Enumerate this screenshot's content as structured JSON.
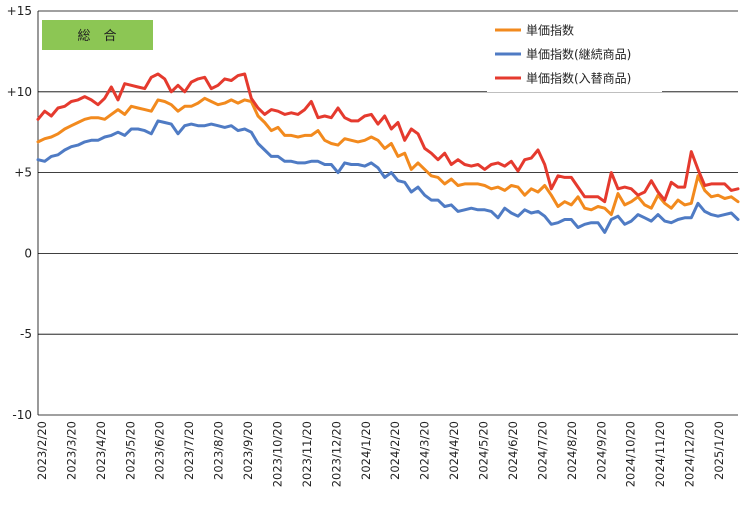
{
  "chart_data": {
    "type": "line",
    "badge": {
      "label": "総　合",
      "color": "#8CC654"
    },
    "y_ticks": [
      "+15",
      "+10",
      "+5",
      "0",
      "-5",
      "-10"
    ],
    "y_tick_values": [
      15,
      10,
      5,
      0,
      -5,
      -10
    ],
    "ylim": [
      -10,
      15
    ],
    "grid": "horizontal",
    "legend_position": "top-right",
    "x_tick_labels": [
      "2023/2/20",
      "2023/3/20",
      "2023/4/20",
      "2023/5/20",
      "2023/6/20",
      "2023/7/20",
      "2023/8/20",
      "2023/9/20",
      "2023/10/20",
      "2023/11/20",
      "2023/12/20",
      "2024/1/20",
      "2024/2/20",
      "2024/3/20",
      "2024/4/20",
      "2024/5/20",
      "2024/6/20",
      "2024/7/20",
      "2024/8/20",
      "2024/9/20",
      "2024/10/20",
      "2024/11/20",
      "2024/12/20",
      "2025/1/20"
    ],
    "series": [
      {
        "name": "単価指数",
        "color": "#F28A1E",
        "values": [
          6.9,
          7.1,
          7.2,
          7.4,
          7.7,
          7.9,
          8.1,
          8.3,
          8.4,
          8.4,
          8.3,
          8.6,
          8.9,
          8.6,
          9.1,
          9.0,
          8.9,
          8.8,
          9.5,
          9.4,
          9.2,
          8.8,
          9.1,
          9.1,
          9.3,
          9.6,
          9.4,
          9.2,
          9.3,
          9.5,
          9.3,
          9.5,
          9.4,
          8.5,
          8.1,
          7.6,
          7.8,
          7.3,
          7.3,
          7.2,
          7.3,
          7.3,
          7.6,
          7.0,
          6.8,
          6.7,
          7.1,
          7.0,
          6.9,
          7.0,
          7.2,
          7.0,
          6.5,
          6.8,
          6.0,
          6.2,
          5.2,
          5.6,
          5.2,
          4.8,
          4.7,
          4.3,
          4.6,
          4.2,
          4.3,
          4.3,
          4.3,
          4.2,
          4.0,
          4.1,
          3.9,
          4.2,
          4.1,
          3.6,
          4.0,
          3.8,
          4.2,
          3.6,
          2.9,
          3.2,
          3.0,
          3.5,
          2.8,
          2.7,
          2.9,
          2.8,
          2.4,
          3.7,
          3.0,
          3.2,
          3.5,
          3.0,
          2.8,
          3.6,
          3.1,
          2.8,
          3.3,
          3.0,
          3.1,
          4.8,
          3.9,
          3.5,
          3.6,
          3.4,
          3.5,
          3.2
        ]
      },
      {
        "name": "単価指数(継続商品)",
        "color": "#4F7BC4",
        "values": [
          5.8,
          5.7,
          6.0,
          6.1,
          6.4,
          6.6,
          6.7,
          6.9,
          7.0,
          7.0,
          7.2,
          7.3,
          7.5,
          7.3,
          7.7,
          7.7,
          7.6,
          7.4,
          8.2,
          8.1,
          8.0,
          7.4,
          7.9,
          8.0,
          7.9,
          7.9,
          8.0,
          7.9,
          7.8,
          7.9,
          7.6,
          7.7,
          7.5,
          6.8,
          6.4,
          6.0,
          6.0,
          5.7,
          5.7,
          5.6,
          5.6,
          5.7,
          5.7,
          5.5,
          5.5,
          5.0,
          5.6,
          5.5,
          5.5,
          5.4,
          5.6,
          5.3,
          4.7,
          5.0,
          4.5,
          4.4,
          3.8,
          4.1,
          3.6,
          3.3,
          3.3,
          2.9,
          3.0,
          2.6,
          2.7,
          2.8,
          2.7,
          2.7,
          2.6,
          2.2,
          2.8,
          2.5,
          2.3,
          2.7,
          2.5,
          2.6,
          2.3,
          1.8,
          1.9,
          2.1,
          2.1,
          1.6,
          1.8,
          1.9,
          1.9,
          1.3,
          2.1,
          2.3,
          1.8,
          2.0,
          2.4,
          2.2,
          2.0,
          2.4,
          2.0,
          1.9,
          2.1,
          2.2,
          2.2,
          3.1,
          2.6,
          2.4,
          2.3,
          2.4,
          2.5,
          2.1
        ]
      },
      {
        "name": "単価指数(入替商品)",
        "color": "#E53A2E",
        "values": [
          8.3,
          8.8,
          8.5,
          9.0,
          9.1,
          9.4,
          9.5,
          9.7,
          9.5,
          9.2,
          9.6,
          10.3,
          9.5,
          10.5,
          10.4,
          10.3,
          10.2,
          10.9,
          11.1,
          10.8,
          10.0,
          10.4,
          10.0,
          10.6,
          10.8,
          10.9,
          10.2,
          10.4,
          10.8,
          10.7,
          11.0,
          11.1,
          9.6,
          9.0,
          8.6,
          8.9,
          8.8,
          8.6,
          8.7,
          8.6,
          8.9,
          9.4,
          8.4,
          8.5,
          8.4,
          9.0,
          8.4,
          8.2,
          8.2,
          8.5,
          8.6,
          8.0,
          8.5,
          7.7,
          8.1,
          7.0,
          7.7,
          7.4,
          6.5,
          6.2,
          5.8,
          6.2,
          5.5,
          5.8,
          5.5,
          5.4,
          5.5,
          5.2,
          5.5,
          5.6,
          5.4,
          5.7,
          5.1,
          5.8,
          5.9,
          6.4,
          5.5,
          4.0,
          4.8,
          4.7,
          4.7,
          4.1,
          3.5,
          3.5,
          3.5,
          3.2,
          5.0,
          4.0,
          4.1,
          4.0,
          3.6,
          3.8,
          4.5,
          3.8,
          3.3,
          4.4,
          4.1,
          4.1,
          6.3,
          5.2,
          4.2,
          4.3,
          4.3,
          4.3,
          3.9,
          4.0
        ]
      }
    ]
  }
}
